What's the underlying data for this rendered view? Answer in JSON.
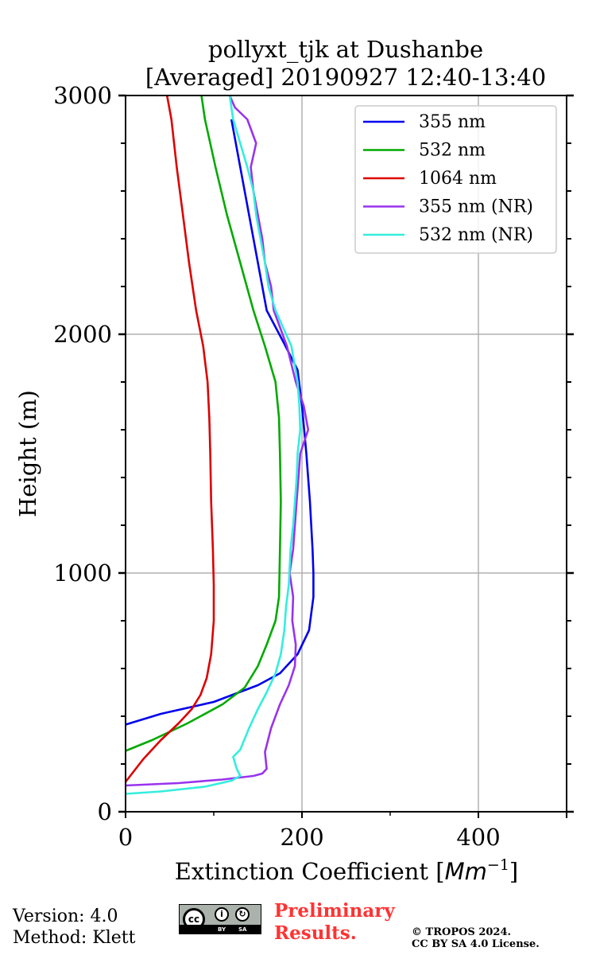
{
  "chart_data": {
    "type": "line",
    "title_line1": "pollyxt_tjk at Dushanbe",
    "title_line2": "[Averaged] 20190927 12:40-13:40",
    "xlabel": "Extinction Coefficient [",
    "xlabel_unit": "Mm",
    "xlabel_exp": "−1",
    "xlabel_close": "]",
    "ylabel": "Height (m)",
    "xlim": [
      0,
      500
    ],
    "ylim": [
      0,
      3000
    ],
    "xticks": [
      0,
      200,
      400
    ],
    "xtick_labels": [
      "0",
      "200",
      "400"
    ],
    "yticks": [
      0,
      1000,
      2000,
      3000
    ],
    "ytick_labels": [
      "0",
      "1000",
      "2000",
      "3000"
    ],
    "grid": true,
    "legend_position": "top-right",
    "series": [
      {
        "name": "355 nm",
        "color": "#0000ee",
        "points": [
          [
            0,
            365
          ],
          [
            40,
            410
          ],
          [
            100,
            460
          ],
          [
            150,
            530
          ],
          [
            175,
            580
          ],
          [
            195,
            660
          ],
          [
            208,
            760
          ],
          [
            213,
            900
          ],
          [
            213,
            1000
          ],
          [
            212,
            1100
          ],
          [
            209,
            1300
          ],
          [
            205,
            1500
          ],
          [
            200,
            1700
          ],
          [
            195,
            1850
          ],
          [
            180,
            1960
          ],
          [
            160,
            2100
          ],
          [
            150,
            2300
          ],
          [
            140,
            2500
          ],
          [
            130,
            2700
          ],
          [
            120,
            2900
          ]
        ]
      },
      {
        "name": "532 nm",
        "color": "#00aa00",
        "points": [
          [
            0,
            255
          ],
          [
            30,
            300
          ],
          [
            70,
            370
          ],
          [
            110,
            450
          ],
          [
            135,
            520
          ],
          [
            150,
            610
          ],
          [
            160,
            700
          ],
          [
            170,
            800
          ],
          [
            174,
            900
          ],
          [
            175,
            1100
          ],
          [
            176,
            1300
          ],
          [
            175,
            1500
          ],
          [
            174,
            1650
          ],
          [
            170,
            1800
          ],
          [
            158,
            1950
          ],
          [
            145,
            2100
          ],
          [
            130,
            2300
          ],
          [
            115,
            2500
          ],
          [
            102,
            2700
          ],
          [
            90,
            2900
          ],
          [
            86,
            3000
          ]
        ]
      },
      {
        "name": "1064 nm",
        "color": "#dd0000",
        "points": [
          [
            0,
            125
          ],
          [
            20,
            220
          ],
          [
            40,
            300
          ],
          [
            60,
            370
          ],
          [
            75,
            430
          ],
          [
            85,
            490
          ],
          [
            92,
            560
          ],
          [
            97,
            660
          ],
          [
            100,
            800
          ],
          [
            100,
            950
          ],
          [
            99,
            1100
          ],
          [
            97,
            1300
          ],
          [
            96,
            1500
          ],
          [
            95,
            1650
          ],
          [
            93,
            1800
          ],
          [
            88,
            1950
          ],
          [
            80,
            2100
          ],
          [
            72,
            2300
          ],
          [
            65,
            2500
          ],
          [
            58,
            2700
          ],
          [
            52,
            2900
          ],
          [
            47,
            3000
          ]
        ]
      },
      {
        "name": "355 nm (NR)",
        "color": "#9933ee",
        "points": [
          [
            0,
            110
          ],
          [
            60,
            120
          ],
          [
            110,
            135
          ],
          [
            145,
            150
          ],
          [
            155,
            160
          ],
          [
            160,
            180
          ],
          [
            158,
            250
          ],
          [
            165,
            350
          ],
          [
            175,
            450
          ],
          [
            185,
            530
          ],
          [
            192,
            610
          ],
          [
            193,
            700
          ],
          [
            189,
            800
          ],
          [
            190,
            900
          ],
          [
            186,
            1000
          ],
          [
            190,
            1100
          ],
          [
            192,
            1200
          ],
          [
            194,
            1300
          ],
          [
            196,
            1400
          ],
          [
            198,
            1500
          ],
          [
            207,
            1600
          ],
          [
            202,
            1700
          ],
          [
            193,
            1800
          ],
          [
            183,
            1950
          ],
          [
            168,
            2100
          ],
          [
            165,
            2200
          ],
          [
            158,
            2300
          ],
          [
            155,
            2400
          ],
          [
            150,
            2500
          ],
          [
            145,
            2600
          ],
          [
            142,
            2700
          ],
          [
            148,
            2800
          ],
          [
            138,
            2900
          ],
          [
            124,
            2950
          ],
          [
            118,
            3000
          ]
        ]
      },
      {
        "name": "532 nm (NR)",
        "color": "#33eedd",
        "points": [
          [
            0,
            75
          ],
          [
            40,
            85
          ],
          [
            90,
            105
          ],
          [
            120,
            130
          ],
          [
            130,
            150
          ],
          [
            126,
            180
          ],
          [
            122,
            230
          ],
          [
            130,
            260
          ],
          [
            140,
            350
          ],
          [
            150,
            430
          ],
          [
            160,
            500
          ],
          [
            170,
            580
          ],
          [
            176,
            660
          ],
          [
            180,
            760
          ],
          [
            182,
            860
          ],
          [
            185,
            950
          ],
          [
            187,
            1100
          ],
          [
            190,
            1200
          ],
          [
            192,
            1300
          ],
          [
            194,
            1400
          ],
          [
            195,
            1500
          ],
          [
            198,
            1600
          ],
          [
            197,
            1700
          ],
          [
            195,
            1800
          ],
          [
            188,
            1950
          ],
          [
            170,
            2100
          ],
          [
            162,
            2200
          ],
          [
            158,
            2300
          ],
          [
            153,
            2400
          ],
          [
            148,
            2500
          ],
          [
            145,
            2600
          ],
          [
            138,
            2700
          ],
          [
            130,
            2800
          ],
          [
            122,
            2900
          ],
          [
            118,
            3000
          ]
        ]
      }
    ]
  },
  "footer": {
    "version": "Version: 4.0",
    "method": "Method: Klett",
    "cc_label_by": "BY",
    "cc_label_sa": "SA",
    "cc_text": "cc",
    "preliminary_line1": "Preliminary",
    "preliminary_line2": "Results.",
    "copyright_line1": "© TROPOS 2024.",
    "copyright_line2": "CC BY SA 4.0 License."
  }
}
